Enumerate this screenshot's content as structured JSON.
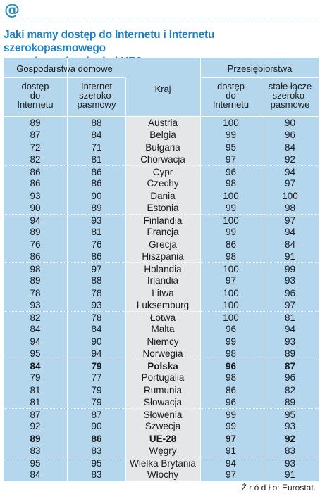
{
  "header": {
    "icon": "at-sign-icon",
    "title_line1": "Jaki mamy dostęp do Internetu i Internetu szerokopasmowego",
    "title_line2": "w porównaniu z krajmi UE?"
  },
  "table": {
    "group_households": "Gospodarstwa domowe",
    "group_enterprises": "Przesiębiorstwa",
    "col1": [
      "dostęp",
      "do",
      "Internetu"
    ],
    "col2": [
      "Internet",
      "szeroko-",
      "pasmowy"
    ],
    "col3": "Kraj",
    "col4": [
      "dostęp",
      "do",
      "Internetu"
    ],
    "col5": [
      "stałe łącze",
      "szeroko-",
      "pasmowe"
    ],
    "rows": [
      {
        "h_access": "89",
        "h_broadband": "88",
        "country": "Austria",
        "e_access": "100",
        "e_broadband": "90"
      },
      {
        "h_access": "87",
        "h_broadband": "84",
        "country": "Belgia",
        "e_access": "99",
        "e_broadband": "96"
      },
      {
        "h_access": "72",
        "h_broadband": "71",
        "country": "Bułgaria",
        "e_access": "95",
        "e_broadband": "84"
      },
      {
        "h_access": "82",
        "h_broadband": "81",
        "country": "Chorwacja",
        "e_access": "97",
        "e_broadband": "92"
      },
      {
        "h_access": "86",
        "h_broadband": "86",
        "country": "Cypr",
        "e_access": "96",
        "e_broadband": "94"
      },
      {
        "h_access": "86",
        "h_broadband": "86",
        "country": "Czechy",
        "e_access": "98",
        "e_broadband": "97"
      },
      {
        "h_access": "93",
        "h_broadband": "90",
        "country": "Dania",
        "e_access": "100",
        "e_broadband": "100"
      },
      {
        "h_access": "90",
        "h_broadband": "89",
        "country": "Estonia",
        "e_access": "99",
        "e_broadband": "98"
      },
      {
        "h_access": "94",
        "h_broadband": "93",
        "country": "Finlandia",
        "e_access": "100",
        "e_broadband": "97"
      },
      {
        "h_access": "89",
        "h_broadband": "81",
        "country": "Francja",
        "e_access": "99",
        "e_broadband": "94"
      },
      {
        "h_access": "76",
        "h_broadband": "76",
        "country": "Grecja",
        "e_access": "86",
        "e_broadband": "84"
      },
      {
        "h_access": "86",
        "h_broadband": "86",
        "country": "Hiszpania",
        "e_access": "98",
        "e_broadband": "91"
      },
      {
        "h_access": "98",
        "h_broadband": "97",
        "country": "Holandia",
        "e_access": "100",
        "e_broadband": "99"
      },
      {
        "h_access": "89",
        "h_broadband": "88",
        "country": "Irlandia",
        "e_access": "97",
        "e_broadband": "93"
      },
      {
        "h_access": "78",
        "h_broadband": "78",
        "country": "Litwa",
        "e_access": "100",
        "e_broadband": "96"
      },
      {
        "h_access": "93",
        "h_broadband": "93",
        "country": "Luksemburg",
        "e_access": "100",
        "e_broadband": "97"
      },
      {
        "h_access": "82",
        "h_broadband": "78",
        "country": "Łotwa",
        "e_access": "100",
        "e_broadband": "81"
      },
      {
        "h_access": "84",
        "h_broadband": "84",
        "country": "Malta",
        "e_access": "96",
        "e_broadband": "94"
      },
      {
        "h_access": "94",
        "h_broadband": "90",
        "country": "Niemcy",
        "e_access": "99",
        "e_broadband": "93"
      },
      {
        "h_access": "95",
        "h_broadband": "94",
        "country": "Norwegia",
        "e_access": "98",
        "e_broadband": "89"
      },
      {
        "h_access": "84",
        "h_broadband": "79",
        "country": "Polska",
        "e_access": "96",
        "e_broadband": "87",
        "bold": true
      },
      {
        "h_access": "79",
        "h_broadband": "77",
        "country": "Portugalia",
        "e_access": "98",
        "e_broadband": "96"
      },
      {
        "h_access": "81",
        "h_broadband": "79",
        "country": "Rumunia",
        "e_access": "86",
        "e_broadband": "82"
      },
      {
        "h_access": "81",
        "h_broadband": "79",
        "country": "Słowacja",
        "e_access": "96",
        "e_broadband": "89"
      },
      {
        "h_access": "87",
        "h_broadband": "87",
        "country": "Słowenia",
        "e_access": "99",
        "e_broadband": "95"
      },
      {
        "h_access": "92",
        "h_broadband": "90",
        "country": "Szwecja",
        "e_access": "99",
        "e_broadband": "93"
      },
      {
        "h_access": "89",
        "h_broadband": "86",
        "country": "UE-28",
        "e_access": "97",
        "e_broadband": "92",
        "bold": true
      },
      {
        "h_access": "83",
        "h_broadband": "83",
        "country": "Węgry",
        "e_access": "91",
        "e_broadband": "83"
      },
      {
        "h_access": "95",
        "h_broadband": "95",
        "country": "Wielka Brytania",
        "e_access": "94",
        "e_broadband": "93"
      },
      {
        "h_access": "84",
        "h_broadband": "83",
        "country": "Włochy",
        "e_access": "97",
        "e_broadband": "91"
      }
    ]
  },
  "source": "Ź r ó d ł o: Eurostat."
}
